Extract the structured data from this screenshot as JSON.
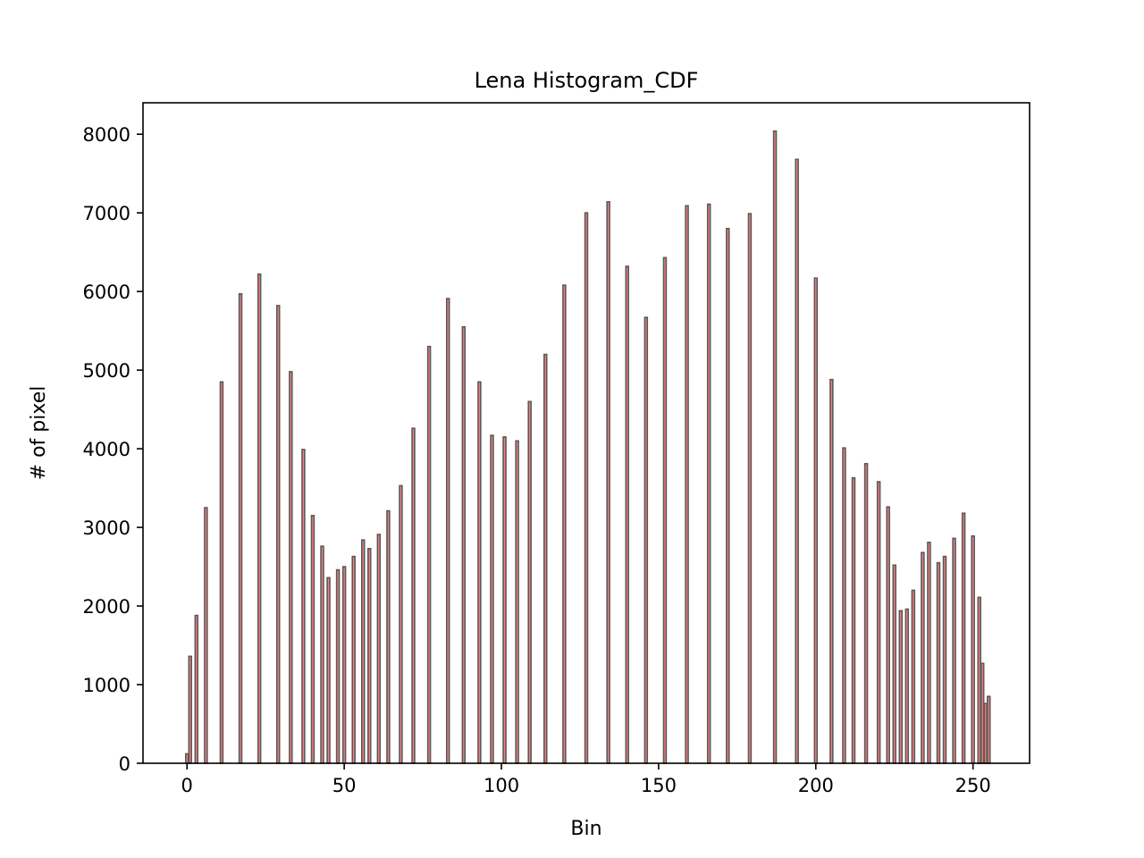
{
  "chart_data": {
    "type": "bar",
    "title": "Lena Histogram_CDF",
    "xlabel": "Bin",
    "ylabel": "# of pixel",
    "xlim": [
      -14,
      268
    ],
    "ylim": [
      0,
      8400
    ],
    "xticks": [
      0,
      50,
      100,
      150,
      200,
      250
    ],
    "yticks": [
      0,
      1000,
      2000,
      3000,
      4000,
      5000,
      6000,
      7000,
      8000
    ],
    "grid": false,
    "bar_fill": "#ff7f7f",
    "bar_edge": "#595959",
    "x": [
      0,
      1,
      3,
      6,
      11,
      17,
      23,
      29,
      33,
      37,
      40,
      43,
      45,
      48,
      50,
      53,
      56,
      58,
      61,
      64,
      68,
      72,
      77,
      83,
      88,
      93,
      97,
      101,
      105,
      109,
      114,
      120,
      127,
      134,
      140,
      146,
      152,
      159,
      166,
      172,
      179,
      187,
      194,
      200,
      205,
      209,
      212,
      216,
      220,
      223,
      225,
      227,
      229,
      231,
      234,
      236,
      239,
      241,
      244,
      247,
      250,
      252,
      253,
      254,
      255
    ],
    "values": [
      120,
      1360,
      1880,
      3250,
      4850,
      5970,
      6220,
      5820,
      4980,
      3990,
      3150,
      2760,
      2360,
      2460,
      2500,
      2630,
      2840,
      2730,
      2910,
      3210,
      3530,
      4260,
      5300,
      5910,
      5550,
      4850,
      4170,
      4150,
      4100,
      4600,
      5200,
      6080,
      7000,
      7140,
      6320,
      5670,
      6430,
      7090,
      7110,
      6800,
      6990,
      8040,
      7680,
      6170,
      4880,
      4010,
      3630,
      3810,
      3580,
      3260,
      2520,
      1940,
      1960,
      2200,
      2680,
      2810,
      2550,
      2630,
      2860,
      3180,
      2890,
      2110,
      1270,
      760,
      850
    ]
  }
}
